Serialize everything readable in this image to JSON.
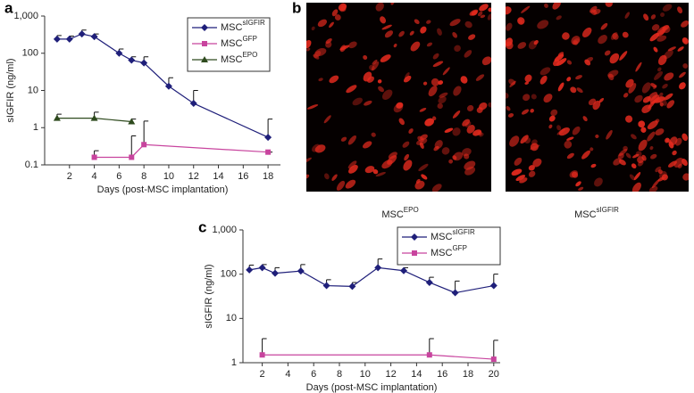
{
  "chart_data": [
    {
      "type": "line",
      "panel": "a",
      "ylabel": "sIGFIR (ng/ml)",
      "xlabel": "Days (post-MSC implantation)",
      "log_y": true,
      "xlim": [
        0,
        19
      ],
      "ylim": [
        0.1,
        1000
      ],
      "xticks": [
        2,
        4,
        6,
        8,
        10,
        12,
        14,
        16,
        18
      ],
      "yticks": [
        0.1,
        1,
        10,
        100,
        {
          "value": 1000,
          "label": "1,000"
        }
      ],
      "legend": "upper right",
      "series": [
        {
          "name": "MSC",
          "name_superscript": "sIGFIR",
          "color": "#1f1f7a",
          "marker": "diamond",
          "x": [
            1,
            2,
            3,
            4,
            6,
            7,
            8,
            10,
            12,
            18
          ],
          "values": [
            240,
            240,
            330,
            280,
            100,
            65,
            55,
            13,
            4.5,
            0.55
          ],
          "errors": [
            60,
            50,
            90,
            50,
            30,
            15,
            25,
            9,
            5.5,
            1.15
          ]
        },
        {
          "name": "MSC",
          "name_superscript": "GFP",
          "color": "#c8449e",
          "marker": "square",
          "x": [
            4,
            7,
            8,
            18
          ],
          "values": [
            0.16,
            0.16,
            0.35,
            0.22
          ],
          "errors": [
            0.08,
            0.44,
            1.15,
            0
          ]
        },
        {
          "name": "MSC",
          "name_superscript": "EPO",
          "color": "#2e4a1e",
          "marker": "triangle",
          "x": [
            1,
            4,
            7
          ],
          "values": [
            1.8,
            1.8,
            1.45
          ],
          "errors": [
            0.5,
            0.8,
            0.25
          ]
        }
      ]
    },
    {
      "type": "line",
      "panel": "c",
      "ylabel": "sIGFIR (ng/ml)",
      "xlabel": "Days (post-MSC implantation)",
      "log_y": true,
      "xlim": [
        0.5,
        20.5
      ],
      "ylim": [
        1,
        1000
      ],
      "xticks": [
        2,
        4,
        6,
        8,
        10,
        12,
        14,
        16,
        18,
        20
      ],
      "yticks": [
        1,
        10,
        100,
        {
          "value": 1000,
          "label": "1,000"
        }
      ],
      "legend": "upper right",
      "series": [
        {
          "name": "MSC",
          "name_superscript": "sIGFIR",
          "color": "#1f1f7a",
          "marker": "diamond",
          "x": [
            1,
            2,
            3,
            5,
            7,
            9,
            11,
            13,
            15,
            17,
            20
          ],
          "values": [
            125,
            140,
            105,
            118,
            55,
            53,
            140,
            120,
            65,
            38,
            55
          ],
          "errors": [
            35,
            25,
            35,
            47,
            20,
            12,
            80,
            20,
            20,
            32,
            45
          ]
        },
        {
          "name": "MSC",
          "name_superscript": "GFP",
          "color": "#c8449e",
          "marker": "square",
          "x": [
            2,
            15,
            20
          ],
          "values": [
            1.5,
            1.5,
            1.2
          ],
          "errors": [
            2,
            2,
            2
          ]
        }
      ]
    }
  ],
  "image_panel": {
    "panel": "b",
    "images": [
      {
        "caption": "MSC",
        "caption_superscript": "EPO"
      },
      {
        "caption": "MSC",
        "caption_superscript": "sIGFIR"
      }
    ]
  }
}
